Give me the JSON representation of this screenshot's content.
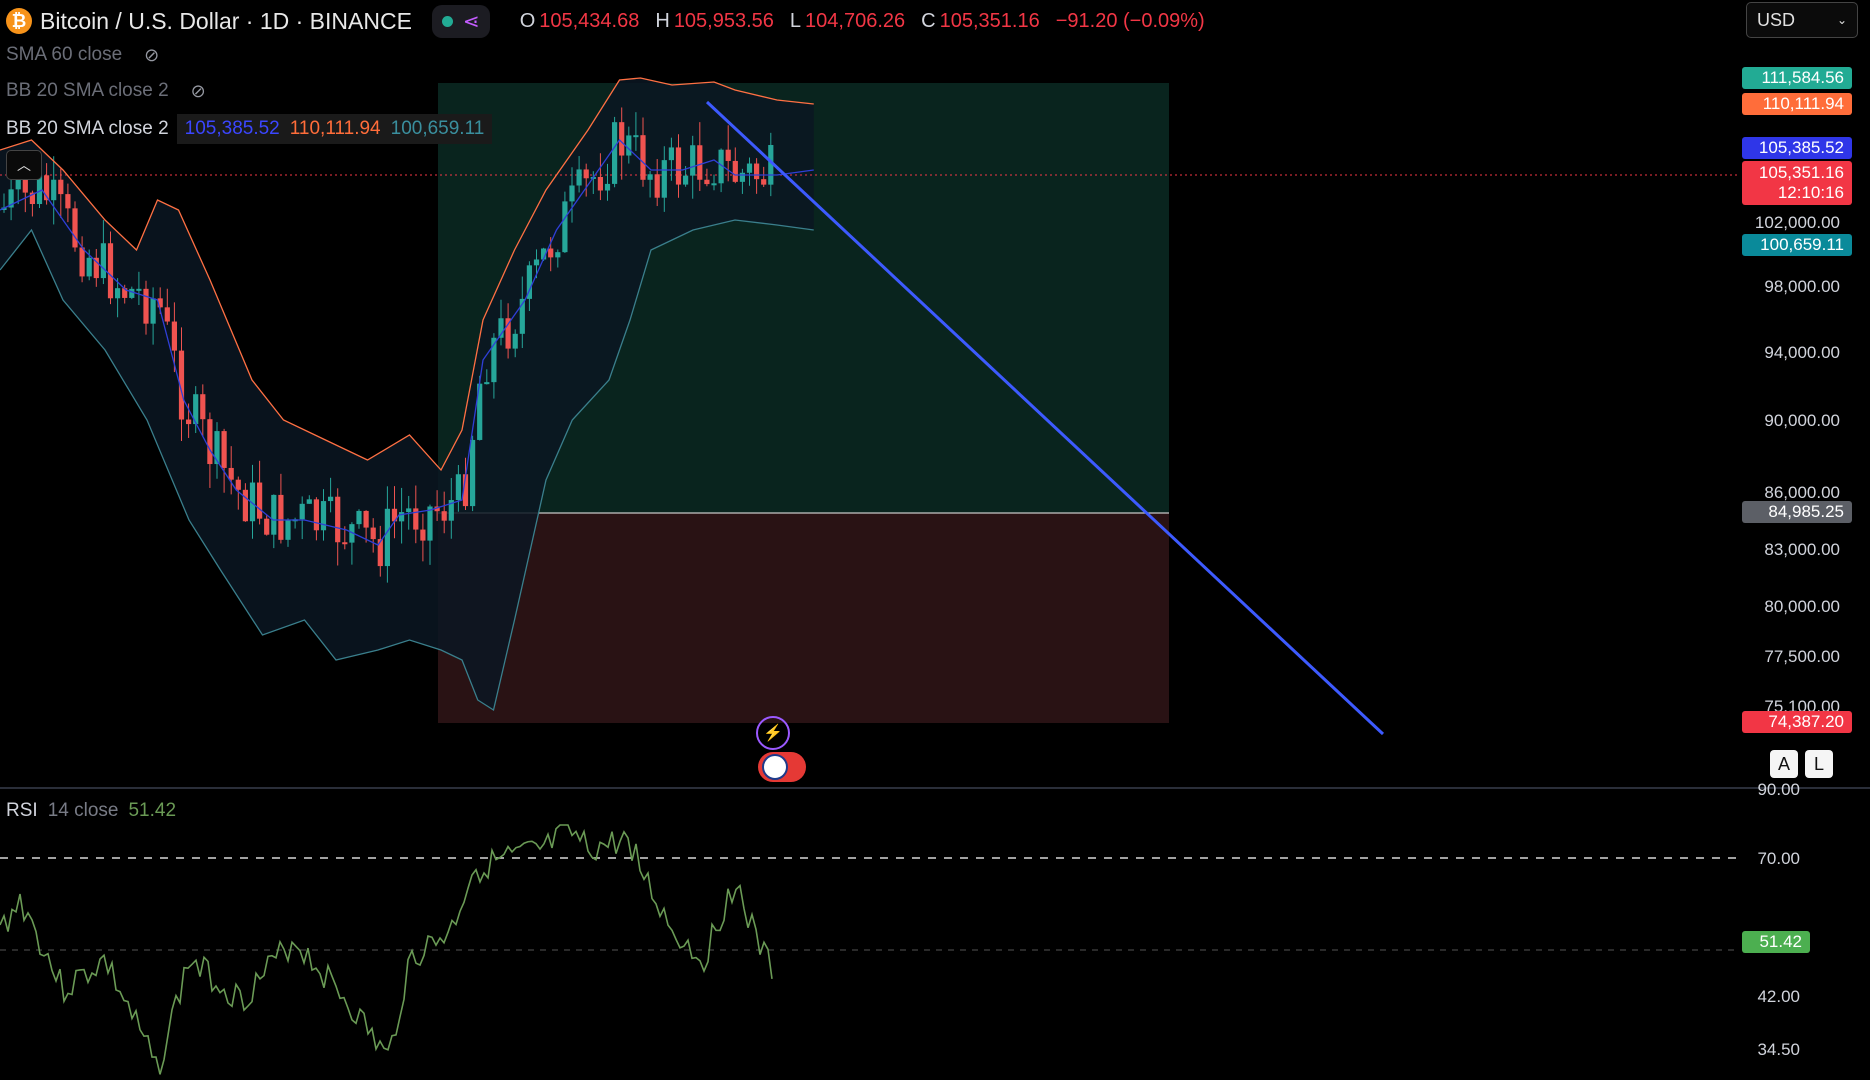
{
  "header": {
    "coin_icon": "bitcoin-icon",
    "coin_letter": "₿",
    "title": "Bitcoin / U.S. Dollar · 1D · BINANCE",
    "share_icon": "share-icon",
    "ohlc": {
      "o_label": "O",
      "o": "105,434.68",
      "h_label": "H",
      "h": "105,953.56",
      "l_label": "L",
      "l": "104,706.26",
      "c_label": "C",
      "c": "105,351.16",
      "change": "−91.20 (−0.09%)"
    },
    "currency": "USD"
  },
  "indicators": {
    "sma": "SMA 60 close",
    "bb_hidden": "BB 20 SMA close 2",
    "bb_active": "BB 20 SMA close 2",
    "bb_basis": "105,385.52",
    "bb_upper": "110,111.94",
    "bb_lower": "100,659.11"
  },
  "price_axis": {
    "ticks": [
      "102,000.00",
      "98,000.00",
      "94,000.00",
      "90,000.00",
      "86,000.00",
      "83,000.00",
      "80,000.00",
      "77,500.00",
      "75,100.00"
    ],
    "tags": {
      "high_tag": "111,584.56",
      "upper_tag": "110,111.94",
      "basis_tag": "105,385.52",
      "close_tag": "105,351.16",
      "countdown": "12:10:16",
      "lower_tag": "100,659.11",
      "entry_tag": "84,985.25",
      "stop_tag": "74,387.20"
    },
    "colors": {
      "teal": "#22ab94",
      "orange": "#ff6d3a",
      "blue": "#2962ff",
      "red": "#f23645",
      "grey": "#787b86",
      "cyan": "#0a8a9a"
    }
  },
  "buttons": {
    "auto": "A",
    "log": "L"
  },
  "rsi": {
    "name": "RSI",
    "params": "14 close",
    "value": "51.42",
    "ticks": [
      "90.00",
      "70.00",
      "42.00",
      "34.50"
    ]
  },
  "events": {
    "event_icon": "event-sparkle-icon",
    "flag_icon": "us-flag-icon"
  }
}
